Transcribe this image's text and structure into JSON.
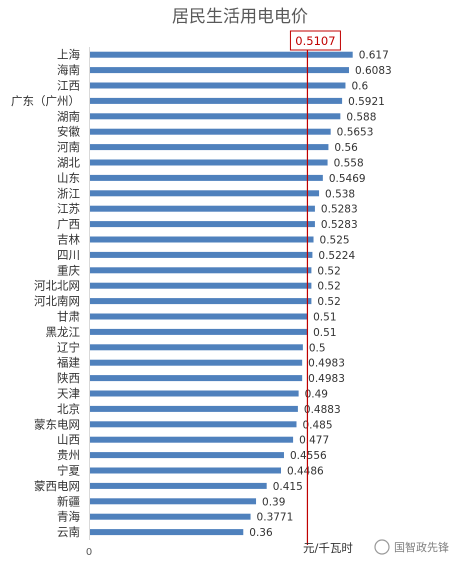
{
  "chart_data": {
    "type": "bar",
    "orientation": "horizontal",
    "title": "居民生活用电电价",
    "categories": [
      "上海",
      "海南",
      "江西",
      "广东（广州）",
      "湖南",
      "安徽",
      "河南",
      "湖北",
      "山东",
      "浙江",
      "江苏",
      "广西",
      "吉林",
      "四川",
      "重庆",
      "河北北网",
      "河北南网",
      "甘肃",
      "黑龙江",
      "辽宁",
      "福建",
      "陕西",
      "天津",
      "北京",
      "蒙东电网",
      "山西",
      "贵州",
      "宁夏",
      "蒙西电网",
      "新疆",
      "青海",
      "云南"
    ],
    "values": [
      0.617,
      0.6083,
      0.6,
      0.5921,
      0.588,
      0.5653,
      0.56,
      0.558,
      0.5469,
      0.538,
      0.5283,
      0.5283,
      0.525,
      0.5224,
      0.52,
      0.52,
      0.52,
      0.51,
      0.51,
      0.5,
      0.4983,
      0.4983,
      0.49,
      0.4883,
      0.485,
      0.477,
      0.4556,
      0.4486,
      0.415,
      0.39,
      0.3771,
      0.36
    ],
    "value_labels": [
      "0.617",
      "0.6083",
      "0.6",
      "0.5921",
      "0.588",
      "0.5653",
      "0.56",
      "0.558",
      "0.5469",
      "0.538",
      "0.5283",
      "0.5283",
      "0.525",
      "0.5224",
      "0.52",
      "0.52",
      "0.52",
      "0.51",
      "0.51",
      "0.5",
      "0.4983",
      "0.4983",
      "0.49",
      "0.4883",
      "0.485",
      "0.477",
      "0.4556",
      "0.4486",
      "0.415",
      "0.39",
      "0.3771",
      "0.36"
    ],
    "reference_line": {
      "value": 0.5107,
      "label": "0.5107",
      "color": "#c00000"
    },
    "xlim": [
      0,
      0.66
    ],
    "x_tick_label": "0",
    "unit_label": "元/千瓦时",
    "bar_color": "#4f81bd",
    "grid": false,
    "legend": "none"
  },
  "watermark": {
    "text": "国智政先锋"
  }
}
